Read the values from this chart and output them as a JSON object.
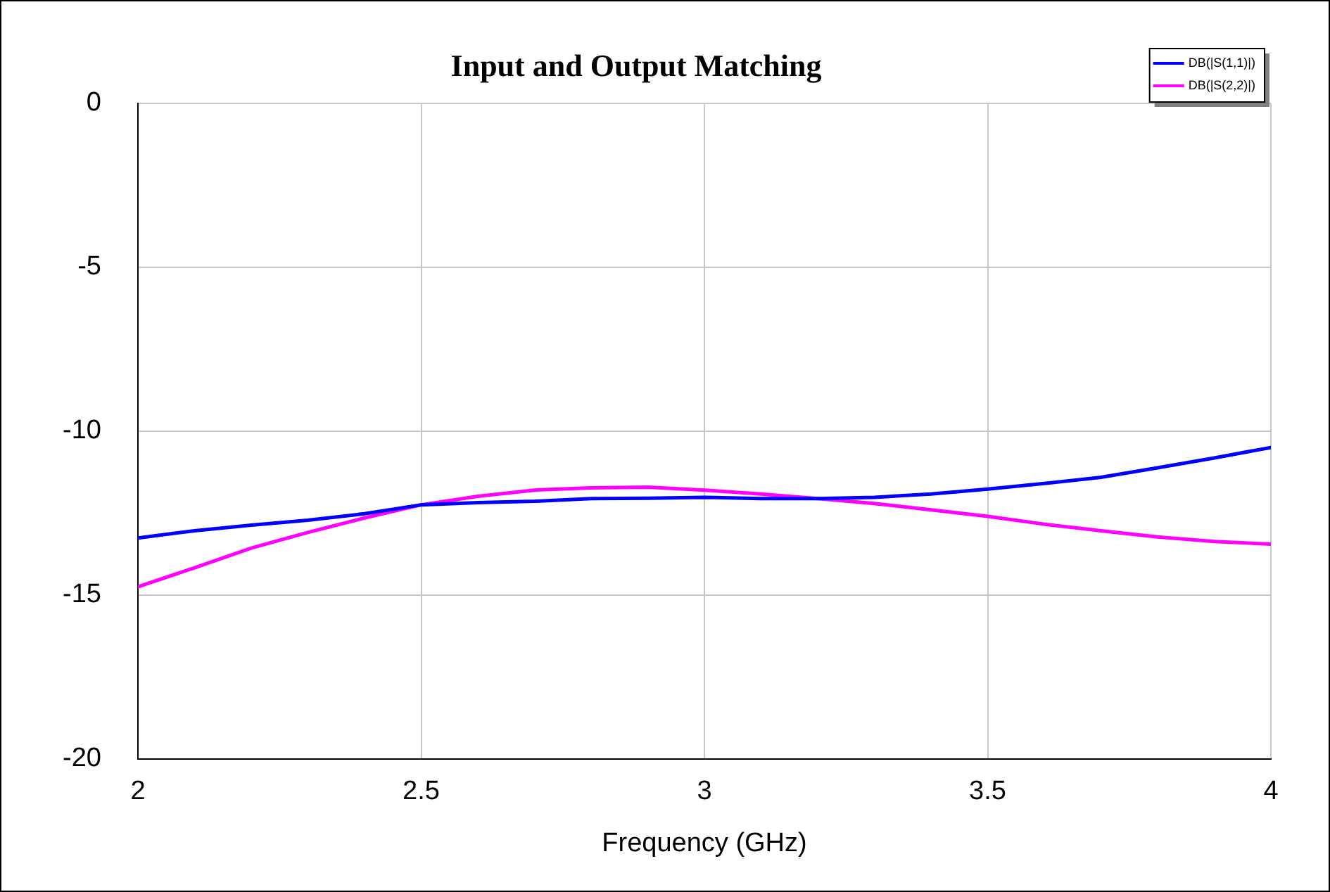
{
  "chart_data": {
    "type": "line",
    "title": "Input and Output Matching",
    "xlabel": "Frequency (GHz)",
    "x": [
      2,
      2.1,
      2.2,
      2.3,
      2.4,
      2.5,
      2.6,
      2.7,
      2.8,
      2.9,
      3,
      3.1,
      3.2,
      3.3,
      3.4,
      3.5,
      3.6,
      3.7,
      3.8,
      3.9,
      4
    ],
    "series": [
      {
        "name": "DB(|S(1,1)|)",
        "color": "#0000ff",
        "values": [
          -13.26,
          -13.04,
          -12.87,
          -12.72,
          -12.52,
          -12.25,
          -12.18,
          -12.14,
          -12.06,
          -12.05,
          -12.02,
          -12.06,
          -12.06,
          -12.02,
          -11.92,
          -11.77,
          -11.6,
          -11.41,
          -11.12,
          -10.82,
          -10.5
        ]
      },
      {
        "name": "DB(|S(2,2)|)",
        "color": "#ff00ff",
        "values": [
          -14.75,
          -14.17,
          -13.57,
          -13.09,
          -12.65,
          -12.25,
          -11.99,
          -11.8,
          -11.73,
          -11.71,
          -11.8,
          -11.92,
          -12.06,
          -12.21,
          -12.4,
          -12.6,
          -12.84,
          -13.04,
          -13.23,
          -13.37,
          -13.45
        ]
      }
    ],
    "xlim": [
      2,
      4
    ],
    "xticks": [
      2,
      2.5,
      3,
      3.5,
      4
    ],
    "ylim": [
      -20,
      0
    ],
    "yticks": [
      -20,
      -15,
      -10,
      -5,
      0
    ],
    "grid": true,
    "legend": "top right",
    "marker": "none",
    "line_style": "solid"
  }
}
